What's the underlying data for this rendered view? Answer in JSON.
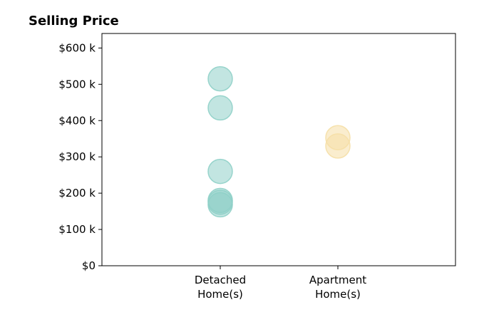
{
  "chart_data": {
    "type": "scatter",
    "title": "Selling Price",
    "xlabel": "",
    "ylabel": "",
    "categories": [
      "Detached\nHome(s)",
      "Apartment\nHome(s)"
    ],
    "ylim": [
      0,
      640000
    ],
    "yticks": [
      {
        "value": 0,
        "label": "$0"
      },
      {
        "value": 100000,
        "label": "$100 k"
      },
      {
        "value": 200000,
        "label": "$200 k"
      },
      {
        "value": 300000,
        "label": "$300 k"
      },
      {
        "value": 400000,
        "label": "$400 k"
      },
      {
        "value": 500000,
        "label": "$500 k"
      },
      {
        "value": 600000,
        "label": "$600 k"
      }
    ],
    "grid": false,
    "series": [
      {
        "category_index": 0,
        "color": "#8fd0c8",
        "values": [
          515000,
          435000,
          260000,
          180000,
          175000,
          168000
        ]
      },
      {
        "category_index": 1,
        "color": "#f5dfa6",
        "values": [
          353000,
          330000
        ]
      }
    ]
  }
}
